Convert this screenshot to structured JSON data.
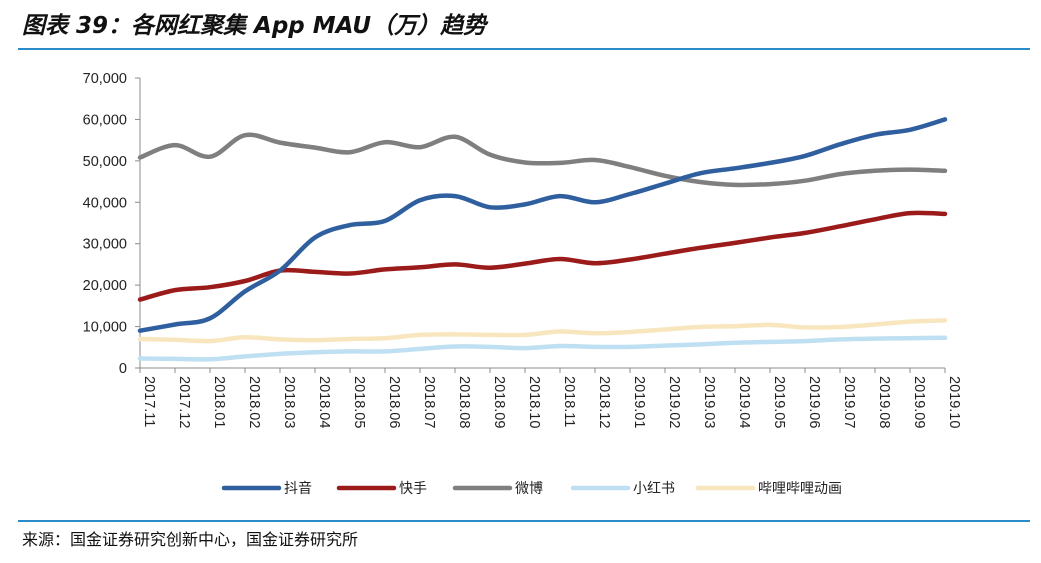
{
  "header": {
    "title": "图表 39：各网红聚集 App MAU（万）趋势"
  },
  "footer": {
    "source": "来源：国金证券研究创新中心，国金证券研究所"
  },
  "colors": {
    "rule": "#2a8cc8",
    "axis": "#8c8c8c"
  },
  "chart_data": {
    "type": "line",
    "title": "各网红聚集 App MAU（万）趋势",
    "xlabel": "",
    "ylabel": "",
    "ylim": [
      0,
      70000
    ],
    "yticks": [
      0,
      10000,
      20000,
      30000,
      40000,
      50000,
      60000,
      70000
    ],
    "ytick_labels": [
      "0",
      "10,000",
      "20,000",
      "30,000",
      "40,000",
      "50,000",
      "60,000",
      "70,000"
    ],
    "grid": false,
    "legend_position": "bottom",
    "x": [
      "2017.11",
      "2017.12",
      "2018.01",
      "2018.02",
      "2018.03",
      "2018.04",
      "2018.05",
      "2018.06",
      "2018.07",
      "2018.08",
      "2018.09",
      "2018.10",
      "2018.11",
      "2018.12",
      "2019.01",
      "2019.02",
      "2019.03",
      "2019.04",
      "2019.05",
      "2019.06",
      "2019.07",
      "2019.08",
      "2019.09",
      "2019.10"
    ],
    "series": [
      {
        "name": "抖音",
        "color": "#2f5f9e",
        "values": [
          9000,
          10500,
          12000,
          18500,
          23500,
          31500,
          34500,
          35500,
          40500,
          41500,
          38800,
          39500,
          41500,
          40000,
          42000,
          44500,
          47000,
          48200,
          49500,
          51200,
          54000,
          56300,
          57500,
          60000
        ]
      },
      {
        "name": "快手",
        "color": "#9b1b1b",
        "values": [
          16500,
          18800,
          19500,
          21000,
          23500,
          23200,
          22800,
          23800,
          24300,
          25000,
          24200,
          25200,
          26300,
          25300,
          26200,
          27600,
          29000,
          30200,
          31500,
          32600,
          34200,
          35900,
          37400,
          37200
        ]
      },
      {
        "name": "微博",
        "color": "#7f7f7f",
        "values": [
          50800,
          53800,
          51000,
          56200,
          54400,
          53200,
          52100,
          54500,
          53300,
          55800,
          51500,
          49600,
          49500,
          50200,
          48500,
          46400,
          44900,
          44200,
          44400,
          45200,
          46800,
          47600,
          47900,
          47600
        ]
      },
      {
        "name": "小红书",
        "color": "#bfe0f2",
        "values": [
          2300,
          2200,
          2100,
          2800,
          3400,
          3800,
          4000,
          4000,
          4600,
          5200,
          5100,
          4800,
          5300,
          5100,
          5100,
          5400,
          5700,
          6100,
          6300,
          6500,
          6900,
          7100,
          7200,
          7300
        ]
      },
      {
        "name": "哔哩哔哩动画",
        "color": "#f8e6be",
        "values": [
          7000,
          6800,
          6500,
          7400,
          6900,
          6700,
          7000,
          7200,
          8000,
          8100,
          8000,
          8000,
          8800,
          8400,
          8700,
          9300,
          9900,
          10100,
          10400,
          9800,
          9900,
          10500,
          11200,
          11500
        ]
      }
    ]
  }
}
